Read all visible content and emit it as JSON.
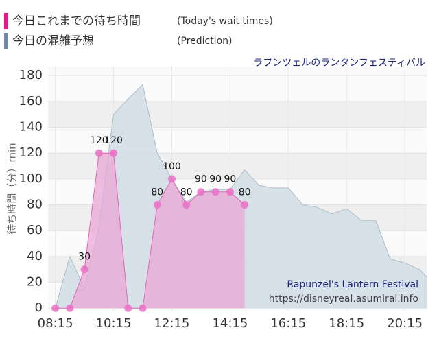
{
  "chart_data": {
    "type": "area",
    "legend": [
      {
        "label": "今日これまでの待ち時間",
        "note": "(Today's wait times)",
        "color": "#e8198b"
      },
      {
        "label": "今日の混雑予想",
        "note": "(Prediction)",
        "color": "#6f87a8"
      }
    ],
    "subtitle": "ラプンツェルのランタンフェスティバル",
    "y_label": "待ち時間（分）min",
    "annotations": [
      "Rapunzel's Lantern Festival",
      "https://disneyreal.asumirai.info"
    ],
    "xlim": [
      480,
      1260
    ],
    "xticks": [
      {
        "value": 495,
        "label": "08:15"
      },
      {
        "value": 615,
        "label": "10:15"
      },
      {
        "value": 735,
        "label": "12:15"
      },
      {
        "value": 855,
        "label": "14:15"
      },
      {
        "value": 975,
        "label": "16:15"
      },
      {
        "value": 1095,
        "label": "18:15"
      },
      {
        "value": 1215,
        "label": "20:15"
      }
    ],
    "ylim": [
      -2,
      187
    ],
    "yticks": [
      0,
      20,
      40,
      60,
      80,
      100,
      120,
      140,
      160,
      180
    ],
    "grid": true,
    "series": [
      {
        "name": "今日の混雑予想",
        "color": "#a9bccb",
        "fill": "#d3dee6",
        "x": [
          495,
          525,
          555,
          585,
          615,
          645,
          675,
          705,
          735,
          765,
          795,
          825,
          855,
          885,
          915,
          945,
          975,
          1005,
          1035,
          1065,
          1095,
          1125,
          1155,
          1185,
          1215,
          1245,
          1260
        ],
        "values": [
          0,
          40,
          15,
          63,
          150,
          162,
          173,
          120,
          100,
          82,
          90,
          92,
          92,
          107,
          95,
          93,
          93,
          80,
          78,
          73,
          77,
          68,
          68,
          38,
          35,
          30,
          24
        ]
      },
      {
        "name": "今日これまでの待ち時間",
        "color": "#e065b8",
        "fill": "#e9a7d6",
        "x": [
          495,
          525,
          555,
          585,
          615,
          645,
          675,
          705,
          735,
          765,
          795,
          825,
          855,
          885
        ],
        "values": [
          0,
          0,
          30,
          120,
          120,
          0,
          0,
          80,
          100,
          80,
          90,
          90,
          90,
          80
        ]
      }
    ]
  }
}
